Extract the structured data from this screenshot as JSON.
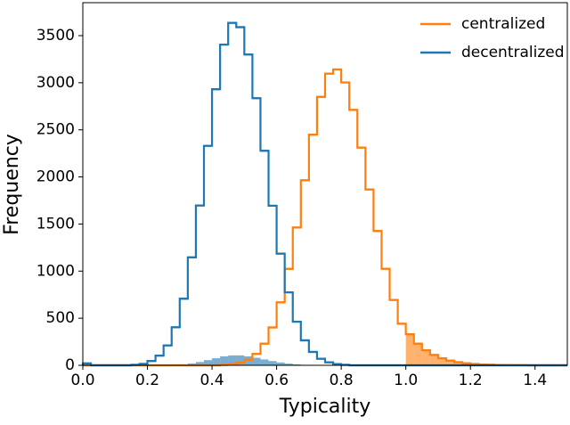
{
  "chart_data": {
    "type": "histogram",
    "xlabel": "Typicality",
    "ylabel": "Frequency",
    "bins": [
      0,
      0.025,
      0.05,
      0.075,
      0.1,
      0.125,
      0.15,
      0.175,
      0.2,
      0.225,
      0.25,
      0.275,
      0.3,
      0.325,
      0.35,
      0.375,
      0.4,
      0.425,
      0.45,
      0.475,
      0.5,
      0.525,
      0.55,
      0.575,
      0.6,
      0.625,
      0.65,
      0.675,
      0.7,
      0.725,
      0.75,
      0.775,
      0.8,
      0.825,
      0.85,
      0.875,
      0.9,
      0.925,
      0.95,
      0.975,
      1,
      1.025,
      1.05,
      1.075,
      1.1,
      1.125,
      1.15,
      1.175,
      1.2,
      1.225,
      1.25,
      1.275,
      1.3,
      1.325,
      1.35,
      1.375,
      1.4,
      1.425,
      1.45,
      1.475,
      1.5
    ],
    "series": [
      {
        "color": "#1f77b4",
        "style": "fill",
        "values": [
          null,
          null,
          null,
          null,
          null,
          null,
          null,
          null,
          null,
          null,
          null,
          5,
          10,
          20,
          35,
          55,
          75,
          95,
          105,
          105,
          95,
          80,
          62,
          45,
          30,
          18,
          10,
          5,
          null,
          null,
          null,
          null,
          null,
          null,
          null,
          null,
          null,
          null,
          null,
          null,
          null,
          null,
          null,
          null,
          null,
          null,
          null,
          null,
          null,
          null,
          null,
          null,
          null,
          null,
          null,
          null,
          null,
          null,
          null,
          null
        ]
      },
      {
        "color": "#ff7f0e",
        "style": "fill",
        "values": [
          null,
          null,
          null,
          null,
          null,
          null,
          null,
          null,
          null,
          null,
          null,
          null,
          null,
          null,
          null,
          null,
          null,
          null,
          null,
          null,
          null,
          null,
          null,
          null,
          null,
          null,
          null,
          null,
          null,
          null,
          null,
          null,
          null,
          null,
          null,
          null,
          null,
          null,
          null,
          null,
          330,
          230,
          160,
          110,
          75,
          50,
          33,
          22,
          14,
          9,
          6,
          4,
          2,
          1,
          1,
          null,
          null,
          null,
          null,
          null
        ]
      },
      {
        "name": "centralized",
        "color": "#ff7f0e",
        "style": "step",
        "values": [
          0,
          0,
          0,
          0,
          0,
          0,
          0,
          0,
          0,
          0,
          0,
          0,
          0,
          0,
          0,
          0,
          0,
          5,
          12,
          27,
          59,
          121,
          230,
          402,
          668,
          1024,
          1463,
          1964,
          2449,
          2850,
          3097,
          3141,
          3003,
          2711,
          2311,
          1867,
          1426,
          1025,
          694,
          441,
          330,
          230,
          160,
          110,
          75,
          50,
          33,
          22,
          14,
          9,
          6,
          4,
          2,
          1,
          1,
          0,
          0,
          0,
          0,
          0
        ]
      },
      {
        "name": "decentralized",
        "color": "#1f77b4",
        "style": "step",
        "values": [
          20,
          0,
          0,
          0,
          0,
          0,
          5,
          15,
          46,
          103,
          211,
          404,
          707,
          1146,
          1697,
          2330,
          2931,
          3405,
          3636,
          3590,
          3300,
          2836,
          2278,
          1694,
          1186,
          775,
          463,
          265,
          142,
          70,
          32,
          13,
          5,
          0,
          0,
          0,
          0,
          0,
          0,
          0,
          0,
          0,
          0,
          0,
          0,
          0,
          0,
          0,
          0,
          0,
          0,
          0,
          0,
          0,
          0,
          0,
          0,
          0,
          0,
          0
        ]
      }
    ],
    "xlim": [
      0,
      1.5
    ],
    "ylim": [
      0,
      3850
    ],
    "xticks": [
      {
        "value": 0,
        "label": "0.0"
      },
      0.2,
      0.4,
      0.6,
      0.8,
      {
        "value": 1,
        "label": "1.0"
      },
      1.2,
      1.4
    ],
    "yticks": [
      0,
      500,
      1000,
      1500,
      2000,
      2500,
      3000,
      3500
    ],
    "grid": false,
    "legend": "upper right"
  }
}
